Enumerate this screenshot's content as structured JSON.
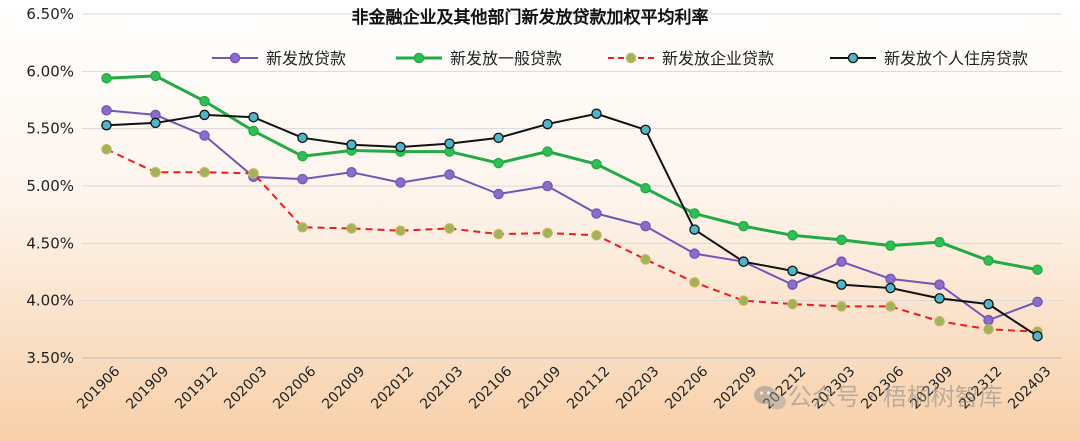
{
  "chart_data": {
    "type": "line",
    "title": "非金融企业及其他部门新发放贷款加权平均利率",
    "xlabel": "",
    "ylabel": "",
    "ylim": [
      3.5,
      6.5
    ],
    "yticks": [
      "3.50%",
      "4.00%",
      "4.50%",
      "5.00%",
      "5.50%",
      "6.00%",
      "6.50%"
    ],
    "ytick_values": [
      3.5,
      4.0,
      4.5,
      5.0,
      5.5,
      6.0,
      6.5
    ],
    "categories": [
      "201906",
      "201909",
      "201912",
      "202003",
      "202006",
      "202009",
      "202012",
      "202103",
      "202106",
      "202109",
      "202112",
      "202203",
      "202206",
      "202209",
      "202212",
      "202303",
      "202306",
      "202309",
      "202312",
      "202403"
    ],
    "grid": true,
    "legend_position": "top",
    "series": [
      {
        "name": "新发放贷款",
        "color": "#7355b8",
        "marker_fill": "#8a6cc9",
        "dash": false,
        "values": [
          5.66,
          5.62,
          5.44,
          5.08,
          5.06,
          5.12,
          5.03,
          5.1,
          4.93,
          5.0,
          4.76,
          4.65,
          4.41,
          4.34,
          4.14,
          4.34,
          4.19,
          4.14,
          3.83,
          3.99
        ]
      },
      {
        "name": "新发放一般贷款",
        "color": "#22aa44",
        "marker_fill": "#2fbf55",
        "dash": false,
        "values": [
          5.94,
          5.96,
          5.74,
          5.48,
          5.26,
          5.31,
          5.3,
          5.3,
          5.2,
          5.3,
          5.19,
          4.98,
          4.76,
          4.65,
          4.57,
          4.53,
          4.48,
          4.51,
          4.35,
          4.27
        ]
      },
      {
        "name": "新发放企业贷款",
        "color": "#ee1c1c",
        "marker_fill": "#9fb35a",
        "dash": true,
        "values": [
          5.32,
          5.12,
          5.12,
          5.11,
          4.64,
          4.63,
          4.61,
          4.63,
          4.58,
          4.59,
          4.57,
          4.36,
          4.16,
          4.0,
          3.97,
          3.95,
          3.95,
          3.82,
          3.75,
          3.73
        ]
      },
      {
        "name": "新发放个人住房贷款",
        "color": "#111111",
        "marker_fill": "#4fb6c9",
        "dash": false,
        "values": [
          5.53,
          5.55,
          5.62,
          5.6,
          5.42,
          5.36,
          5.34,
          5.37,
          5.42,
          5.54,
          5.63,
          5.49,
          4.62,
          4.34,
          4.26,
          4.14,
          4.11,
          4.02,
          3.97,
          3.69
        ]
      }
    ]
  },
  "watermark": {
    "text": "公众号 · 梧桐树智库",
    "icon": "wechat-icon"
  }
}
